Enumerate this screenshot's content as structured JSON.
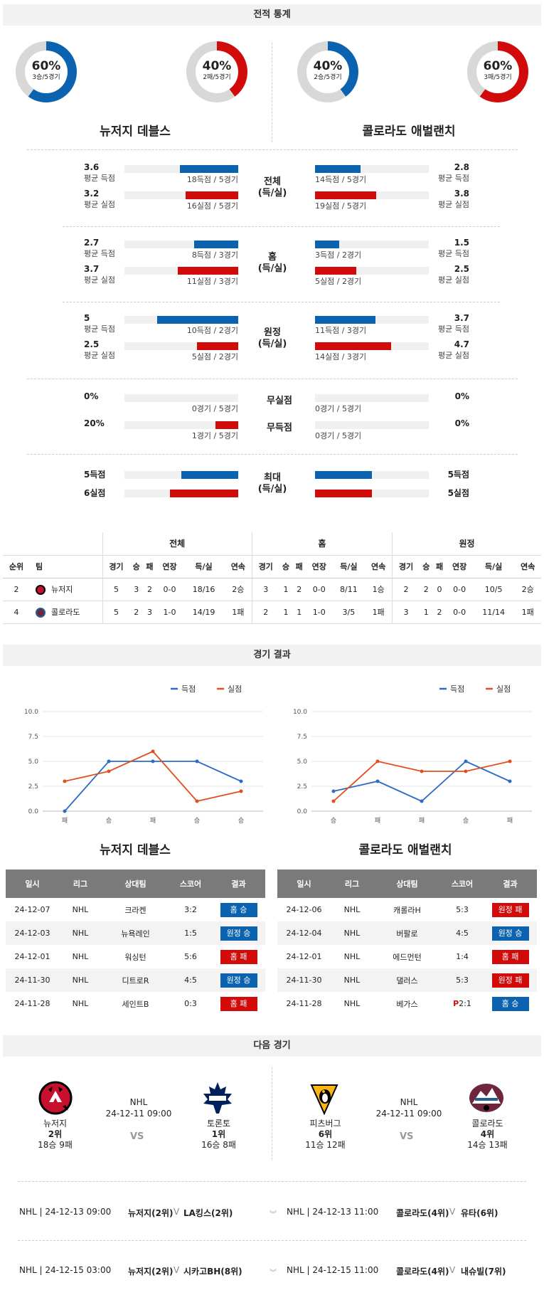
{
  "sections": {
    "stats": "전적 통계",
    "results": "경기 결과",
    "next": "다음 경기"
  },
  "donuts": [
    {
      "pct": "60%",
      "sub": "3승/5경기",
      "color": "#0b63b0",
      "value": 0.6
    },
    {
      "pct": "40%",
      "sub": "2패/5경기",
      "color": "#d10a0a",
      "value": 0.4
    },
    {
      "pct": "40%",
      "sub": "2승/5경기",
      "color": "#0b63b0",
      "value": 0.4
    },
    {
      "pct": "60%",
      "sub": "3패/5경기",
      "color": "#d10a0a",
      "value": 0.6
    }
  ],
  "teams": {
    "home": "뉴저지 데블스",
    "away": "콜로라도 애벌랜치"
  },
  "stat_groups": [
    {
      "mid1": "전체",
      "mid2": "(득/실)",
      "rows": [
        {
          "lv": "3.6",
          "ll": "평균 득점",
          "lc": "18득점 / 5경기",
          "lf": 0.51,
          "rv": "2.8",
          "rl": "평균 득점",
          "rc": "14득점 / 5경기",
          "rf": 0.4,
          "color": "blue"
        },
        {
          "lv": "3.2",
          "ll": "평균 실점",
          "lc": "16실점 / 5경기",
          "lf": 0.46,
          "rv": "3.8",
          "rl": "평균 실점",
          "rc": "19실점 / 5경기",
          "rf": 0.54,
          "color": "red"
        }
      ]
    },
    {
      "mid1": "홈",
      "mid2": "(득/실)",
      "rows": [
        {
          "lv": "2.7",
          "ll": "평균 득점",
          "lc": "8득점 / 3경기",
          "lf": 0.39,
          "rv": "1.5",
          "rl": "평균 득점",
          "rc": "3득점 / 2경기",
          "rf": 0.21,
          "color": "blue"
        },
        {
          "lv": "3.7",
          "ll": "평균 실점",
          "lc": "11실점 / 3경기",
          "lf": 0.53,
          "rv": "2.5",
          "rl": "평균 실점",
          "rc": "5실점 / 2경기",
          "rf": 0.36,
          "color": "red"
        }
      ]
    },
    {
      "mid1": "원정",
      "mid2": "(득/실)",
      "rows": [
        {
          "lv": "5",
          "ll": "평균 득점",
          "lc": "10득점 / 2경기",
          "lf": 0.71,
          "rv": "3.7",
          "rl": "평균 득점",
          "rc": "11득점 / 3경기",
          "rf": 0.53,
          "color": "blue"
        },
        {
          "lv": "2.5",
          "ll": "평균 실점",
          "lc": "5실점 / 2경기",
          "lf": 0.36,
          "rv": "4.7",
          "rl": "평균 실점",
          "rc": "14실점 / 3경기",
          "rf": 0.67,
          "color": "red"
        }
      ]
    }
  ],
  "shutout": [
    {
      "mid": "무실점",
      "lv": "0%",
      "lc": "0경기 / 5경기",
      "lf": 0,
      "rv": "0%",
      "rc": "0경기 / 5경기",
      "rf": 0
    },
    {
      "mid": "무득점",
      "lv": "20%",
      "lc": "1경기 / 5경기",
      "lf": 0.2,
      "rv": "0%",
      "rc": "0경기 / 5경기",
      "rf": 0
    }
  ],
  "max": {
    "mid1": "최대",
    "mid2": "(득/실)",
    "rows": [
      {
        "lv": "5득점",
        "rv": "5득점",
        "lf": 0.5,
        "rf": 0.5,
        "color": "blue"
      },
      {
        "lv": "6실점",
        "rv": "5실점",
        "lf": 0.6,
        "rf": 0.5,
        "color": "red"
      }
    ]
  },
  "standings": {
    "groups": [
      "전체",
      "홈",
      "원정"
    ],
    "h_rank": "순위",
    "h_team": "팀",
    "cols": [
      "경기",
      "승",
      "패",
      "연장",
      "득/실",
      "연속"
    ],
    "rows": [
      {
        "rank": "2",
        "team": "뉴저지",
        "vals": [
          "5",
          "3",
          "2",
          "0-0",
          "18/16",
          "2승",
          "3",
          "1",
          "2",
          "0-0",
          "8/11",
          "1승",
          "2",
          "2",
          "0",
          "0-0",
          "10/5",
          "2승"
        ]
      },
      {
        "rank": "4",
        "team": "콜로라도",
        "vals": [
          "5",
          "2",
          "3",
          "1-0",
          "14/19",
          "1패",
          "2",
          "1",
          "1",
          "1-0",
          "3/5",
          "1패",
          "3",
          "1",
          "2",
          "0-0",
          "11/14",
          "1패"
        ]
      }
    ]
  },
  "chart_data": [
    {
      "type": "line",
      "title": "",
      "x": [
        "패",
        "승",
        "패",
        "승",
        "승"
      ],
      "ylim": [
        0,
        10
      ],
      "yticks": [
        "0.0",
        "2.5",
        "5.0",
        "7.5",
        "10.0"
      ],
      "series": [
        {
          "name": "득점",
          "color": "#2e6bc5",
          "values": [
            0,
            5,
            5,
            5,
            3
          ]
        },
        {
          "name": "실점",
          "color": "#e0501e",
          "values": [
            3,
            4,
            6,
            1,
            2
          ]
        }
      ],
      "legend": "top-right",
      "grid": true
    },
    {
      "type": "line",
      "title": "",
      "x": [
        "승",
        "패",
        "패",
        "승",
        "패"
      ],
      "ylim": [
        0,
        10
      ],
      "yticks": [
        "0.0",
        "2.5",
        "5.0",
        "7.5",
        "10.0"
      ],
      "series": [
        {
          "name": "득점",
          "color": "#2e6bc5",
          "values": [
            2,
            3,
            1,
            5,
            3
          ]
        },
        {
          "name": "실점",
          "color": "#e0501e",
          "values": [
            1,
            5,
            4,
            4,
            5
          ]
        }
      ],
      "legend": "top-right",
      "grid": true
    }
  ],
  "results_headers": [
    "일시",
    "리그",
    "상대팀",
    "스코어",
    "결과"
  ],
  "results": {
    "home": [
      {
        "date": "24-12-07",
        "league": "NHL",
        "opp": "크라켄",
        "score": "3:2",
        "res": "홈 승",
        "c": "b"
      },
      {
        "date": "24-12-03",
        "league": "NHL",
        "opp": "뉴욕레인",
        "score": "1:5",
        "res": "원정 승",
        "c": "b"
      },
      {
        "date": "24-12-01",
        "league": "NHL",
        "opp": "워싱턴",
        "score": "5:6",
        "res": "홈 패",
        "c": "r"
      },
      {
        "date": "24-11-30",
        "league": "NHL",
        "opp": "디트로R",
        "score": "4:5",
        "res": "원정 승",
        "c": "b"
      },
      {
        "date": "24-11-28",
        "league": "NHL",
        "opp": "세인트B",
        "score": "0:3",
        "res": "홈 패",
        "c": "r"
      }
    ],
    "away": [
      {
        "date": "24-12-06",
        "league": "NHL",
        "opp": "캐롤라H",
        "score": "5:3",
        "res": "원정 패",
        "c": "r"
      },
      {
        "date": "24-12-04",
        "league": "NHL",
        "opp": "버팔로",
        "score": "4:5",
        "res": "원정 승",
        "c": "b"
      },
      {
        "date": "24-12-01",
        "league": "NHL",
        "opp": "에드먼턴",
        "score": "1:4",
        "res": "홈 패",
        "c": "r"
      },
      {
        "date": "24-11-30",
        "league": "NHL",
        "opp": "댈러스",
        "score": "5:3",
        "res": "원정 패",
        "c": "r"
      },
      {
        "date": "24-11-28",
        "league": "NHL",
        "opp": "베가스",
        "score": "2:1",
        "prefix": "P",
        "res": "홈 승",
        "c": "b"
      }
    ]
  },
  "next_games": [
    {
      "league": "NHL",
      "time": "24-12-11 09:00",
      "vs": "VS",
      "left": {
        "name": "뉴저지",
        "rank": "2위",
        "rec": "18승 9패"
      },
      "right": {
        "name": "토론토",
        "rank": "1위",
        "rec": "16승 8패"
      }
    },
    {
      "league": "NHL",
      "time": "24-12-11 09:00",
      "vs": "VS",
      "left": {
        "name": "피츠버그",
        "rank": "6위",
        "rec": "11승 12패"
      },
      "right": {
        "name": "콜로라도",
        "rank": "4위",
        "rec": "14승 13패"
      }
    }
  ],
  "upcoming": [
    {
      "l_info": "NHL | 24-12-13 09:00",
      "l_t1": "뉴저지(2위)",
      "l_v": "V",
      "l_t2": "LA킹스(2위)",
      "r_info": "NHL | 24-12-13 11:00",
      "r_t1": "콜로라도(4위)",
      "r_v": "V",
      "r_t2": "유타(6위)"
    },
    {
      "l_info": "NHL | 24-12-15 03:00",
      "l_t1": "뉴저지(2위)",
      "l_v": "V",
      "l_t2": "시카고BH(8위)",
      "r_info": "NHL | 24-12-15 11:00",
      "r_t1": "콜로라도(4위)",
      "r_v": "V",
      "r_t2": "내슈빌(7위)"
    }
  ]
}
